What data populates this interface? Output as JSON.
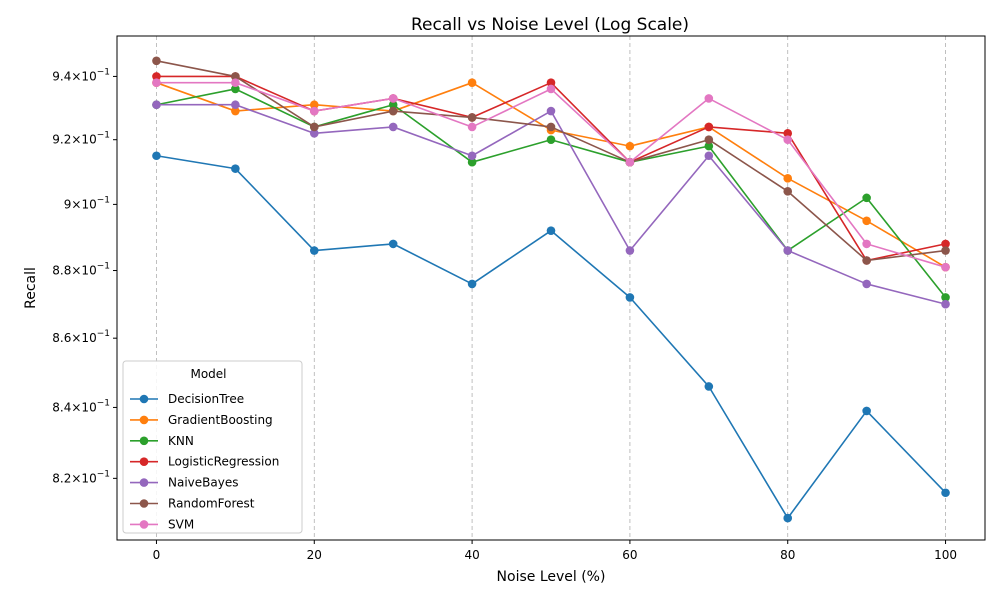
{
  "chart_data": {
    "type": "line",
    "title": "Recall vs Noise Level (Log Scale)",
    "xlabel": "Noise Level (%)",
    "ylabel": "Recall",
    "yscale": "log",
    "x": [
      0,
      10,
      20,
      30,
      40,
      50,
      60,
      70,
      80,
      90,
      100
    ],
    "xlim": [
      -5,
      105
    ],
    "ylim": [
      0.803,
      0.953
    ],
    "xticks": [
      0,
      20,
      40,
      60,
      80,
      100
    ],
    "xtick_labels": [
      "0",
      "20",
      "40",
      "60",
      "80",
      "100"
    ],
    "yticks": [
      0.82,
      0.84,
      0.86,
      0.88,
      0.9,
      0.92,
      0.94
    ],
    "ytick_mantissas": [
      "8.2",
      "8.4",
      "8.6",
      "8.8",
      "9",
      "9.2",
      "9.4"
    ],
    "ytick_base": "10",
    "ytick_exp": "−1",
    "grid": "x-dashed",
    "legend": {
      "title": "Model",
      "placement": "lower-left"
    },
    "series": [
      {
        "name": "DecisionTree",
        "color": "#1f77b4",
        "values": [
          0.915,
          0.911,
          0.886,
          0.888,
          0.876,
          0.892,
          0.872,
          0.846,
          0.809,
          0.839,
          0.816
        ]
      },
      {
        "name": "GradientBoosting",
        "color": "#ff7f0e",
        "values": [
          0.938,
          0.929,
          0.931,
          0.929,
          0.938,
          0.923,
          0.918,
          0.924,
          0.908,
          0.895,
          0.881
        ]
      },
      {
        "name": "KNN",
        "color": "#2ca02c",
        "values": [
          0.931,
          0.936,
          0.924,
          0.931,
          0.913,
          0.92,
          0.913,
          0.918,
          0.886,
          0.902,
          0.872
        ]
      },
      {
        "name": "LogisticRegression",
        "color": "#d62728",
        "values": [
          0.94,
          0.94,
          0.929,
          0.933,
          0.927,
          0.938,
          0.913,
          0.924,
          0.922,
          0.883,
          0.888
        ]
      },
      {
        "name": "NaiveBayes",
        "color": "#9467bd",
        "values": [
          0.931,
          0.931,
          0.922,
          0.924,
          0.915,
          0.929,
          0.886,
          0.915,
          0.886,
          0.876,
          0.87
        ]
      },
      {
        "name": "RandomForest",
        "color": "#8c564b",
        "values": [
          0.945,
          0.94,
          0.924,
          0.929,
          0.927,
          0.924,
          0.913,
          0.92,
          0.904,
          0.883,
          0.886
        ]
      },
      {
        "name": "SVM",
        "color": "#e377c2",
        "values": [
          0.938,
          0.938,
          0.929,
          0.933,
          0.924,
          0.936,
          0.913,
          0.933,
          0.92,
          0.888,
          0.881
        ]
      }
    ]
  }
}
